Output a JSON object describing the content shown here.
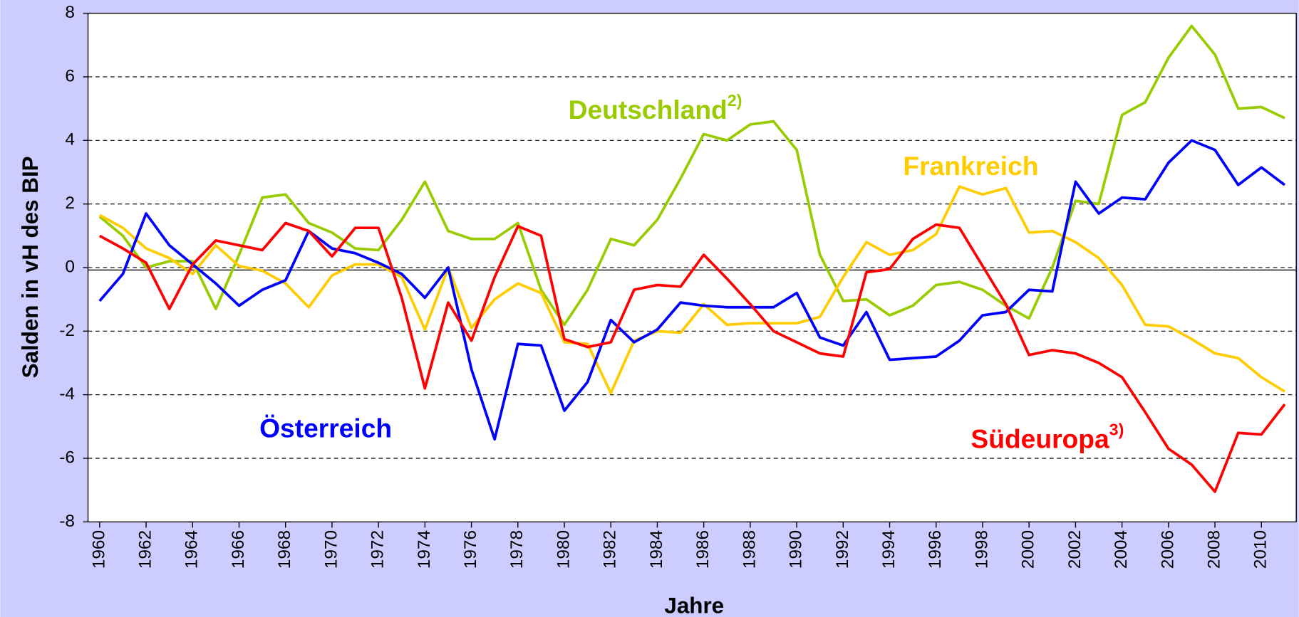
{
  "chart_data": {
    "type": "line",
    "y_label": "Salden in vH des BIP",
    "x_label": "Jahre",
    "x": [
      1960,
      1961,
      1962,
      1963,
      1964,
      1965,
      1966,
      1967,
      1968,
      1969,
      1970,
      1971,
      1972,
      1973,
      1974,
      1975,
      1976,
      1977,
      1978,
      1979,
      1980,
      1981,
      1982,
      1983,
      1984,
      1985,
      1986,
      1987,
      1988,
      1989,
      1990,
      1991,
      1992,
      1993,
      1994,
      1995,
      1996,
      1997,
      1998,
      1999,
      2000,
      2001,
      2002,
      2003,
      2004,
      2005,
      2006,
      2007,
      2008,
      2009,
      2010,
      2011
    ],
    "xlim": [
      1959.5,
      2011.5
    ],
    "xticks": [
      1960,
      1962,
      1964,
      1966,
      1968,
      1970,
      1972,
      1974,
      1976,
      1978,
      1980,
      1982,
      1984,
      1986,
      1988,
      1990,
      1992,
      1994,
      1996,
      1998,
      2000,
      2002,
      2004,
      2006,
      2008,
      2010
    ],
    "ylim": [
      -8,
      8
    ],
    "yticks": [
      -8,
      -6,
      -4,
      -2,
      0,
      2,
      4,
      6,
      8
    ],
    "grid": true,
    "series": [
      {
        "name": "Deutschland",
        "footnote": "2)",
        "color": "#99cc00",
        "values": [
          1.6,
          1.0,
          0.0,
          0.2,
          0.2,
          -1.3,
          0.4,
          2.2,
          2.3,
          1.4,
          1.1,
          0.6,
          0.55,
          1.5,
          2.7,
          1.15,
          0.9,
          0.9,
          1.4,
          -0.7,
          -1.8,
          -0.7,
          0.9,
          0.7,
          1.5,
          2.8,
          4.2,
          4.0,
          4.5,
          4.6,
          3.7,
          0.4,
          -1.05,
          -1.0,
          -1.5,
          -1.2,
          -0.55,
          -0.45,
          -0.7,
          -1.2,
          -1.6,
          0.0,
          2.1,
          2.0,
          4.8,
          5.2,
          6.6,
          7.6,
          6.7,
          5.0,
          5.05,
          4.7
        ]
      },
      {
        "name": "Frankreich",
        "color": "#ffcc00",
        "values": [
          1.65,
          1.25,
          0.6,
          0.3,
          -0.2,
          0.7,
          0.05,
          -0.1,
          -0.5,
          -1.25,
          -0.25,
          0.1,
          0.1,
          -0.3,
          -1.95,
          0.0,
          -1.9,
          -1.0,
          -0.5,
          -0.8,
          -2.35,
          -2.4,
          -3.95,
          -2.3,
          -2.0,
          -2.05,
          -1.15,
          -1.8,
          -1.75,
          -1.75,
          -1.75,
          -1.55,
          -0.3,
          0.8,
          0.4,
          0.55,
          1.05,
          2.55,
          2.3,
          2.5,
          1.1,
          1.15,
          0.8,
          0.3,
          -0.55,
          -1.8,
          -1.85,
          -2.25,
          -2.7,
          -2.85,
          -3.45,
          -3.9
        ]
      },
      {
        "name": "Österreich",
        "color": "#0000ff",
        "values": [
          -1.05,
          -0.2,
          1.7,
          0.7,
          0.1,
          -0.5,
          -1.2,
          -0.7,
          -0.4,
          1.15,
          0.6,
          0.45,
          0.15,
          -0.2,
          -0.95,
          0.0,
          -3.2,
          -5.4,
          -2.4,
          -2.45,
          -4.5,
          -3.6,
          -1.65,
          -2.35,
          -1.95,
          -1.1,
          -1.2,
          -1.25,
          -1.25,
          -1.25,
          -0.8,
          -2.2,
          -2.45,
          -1.4,
          -2.9,
          -2.85,
          -2.8,
          -2.3,
          -1.5,
          -1.4,
          -0.7,
          -0.75,
          2.7,
          1.7,
          2.2,
          2.15,
          3.3,
          4.0,
          3.7,
          2.6,
          3.15,
          2.6
        ]
      },
      {
        "name": "Südeuropa",
        "footnote": "3)",
        "color": "#ff0000",
        "values": [
          1.0,
          0.6,
          0.15,
          -1.3,
          0.1,
          0.85,
          0.7,
          0.55,
          1.4,
          1.15,
          0.35,
          1.25,
          1.25,
          -0.95,
          -3.8,
          -1.1,
          -2.3,
          -0.3,
          1.3,
          1.0,
          -2.25,
          -2.5,
          -2.35,
          -0.7,
          -0.55,
          -0.6,
          0.4,
          -0.35,
          -1.15,
          -2.0,
          -2.35,
          -2.7,
          -2.8,
          -0.15,
          -0.05,
          0.9,
          1.35,
          1.25,
          0.05,
          -1.15,
          -2.75,
          -2.6,
          -2.7,
          -3.0,
          -3.45,
          -4.55,
          -5.7,
          -6.2,
          -7.05,
          -5.2,
          -5.25,
          -4.3
        ]
      }
    ]
  }
}
